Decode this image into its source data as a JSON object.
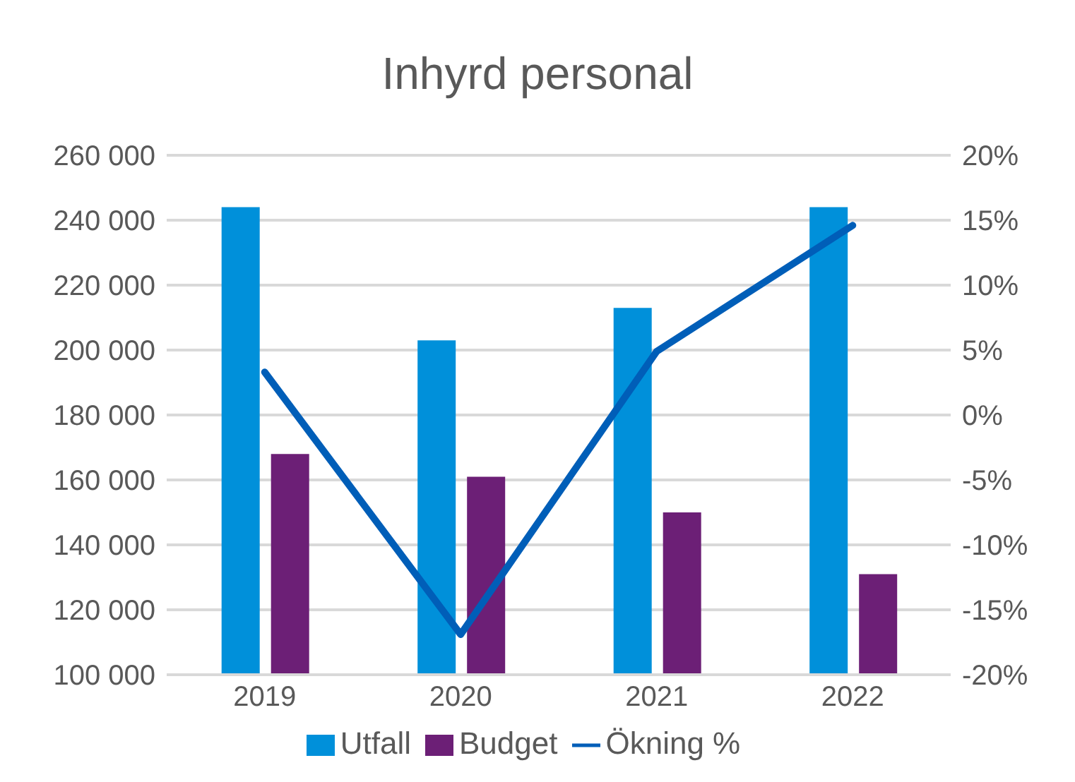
{
  "chart_data": {
    "type": "bar",
    "title": "Inhyrd personal",
    "categories": [
      "2019",
      "2020",
      "2021",
      "2022"
    ],
    "series": [
      {
        "name": "Utfall",
        "color": "#0090da",
        "values": [
          244000,
          203000,
          213000,
          244000
        ]
      },
      {
        "name": "Budget",
        "color": "#6c1f76",
        "values": [
          168000,
          161000,
          150000,
          131000
        ]
      },
      {
        "name": "Ökning %",
        "color": "#005eb8",
        "type": "line",
        "axis": "y2",
        "marker": "none",
        "values": [
          3.3,
          -16.9,
          4.9,
          14.6
        ]
      }
    ],
    "ylim": [
      100000,
      260000
    ],
    "yticks": [
      {
        "value": 100000,
        "label": "100 000"
      },
      {
        "value": 120000,
        "label": "120 000"
      },
      {
        "value": 140000,
        "label": "140 000"
      },
      {
        "value": 160000,
        "label": "160 000"
      },
      {
        "value": 180000,
        "label": "180 000"
      },
      {
        "value": 200000,
        "label": "200 000"
      },
      {
        "value": 220000,
        "label": "220 000"
      },
      {
        "value": 240000,
        "label": "240 000"
      },
      {
        "value": 260000,
        "label": "260 000"
      }
    ],
    "y2lim": [
      -20,
      20
    ],
    "y2ticks": [
      {
        "value": -20,
        "label": "-20%"
      },
      {
        "value": -15,
        "label": "-15%"
      },
      {
        "value": -10,
        "label": "-10%"
      },
      {
        "value": -5,
        "label": "-5%"
      },
      {
        "value": 0,
        "label": "0%"
      },
      {
        "value": 5,
        "label": "5%"
      },
      {
        "value": 10,
        "label": "10%"
      },
      {
        "value": 15,
        "label": "15%"
      },
      {
        "value": 20,
        "label": "20%"
      }
    ],
    "grid": "y",
    "legend": "bottom"
  }
}
